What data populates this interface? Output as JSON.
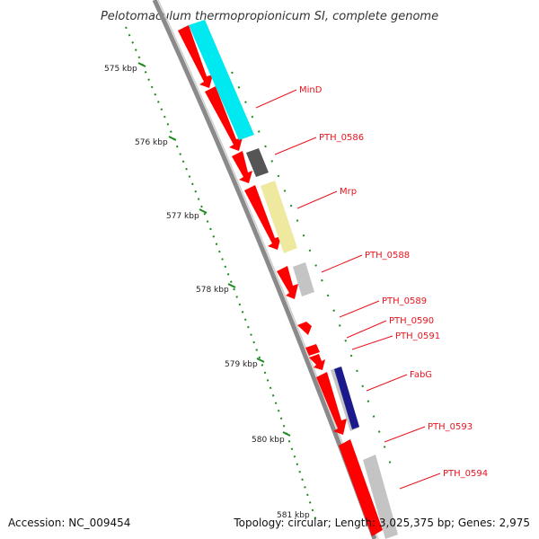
{
  "title": "Pelotomaculum thermopropionicum SI, complete genome",
  "footer": {
    "accession": "Accession: NC_009454",
    "topology": "Topology: circular; Length: 3,025,375 bp; Genes: 2,975"
  },
  "axis": {
    "ticks": [
      "575 kbp",
      "576 kbp",
      "577 kbp",
      "578 kbp",
      "579 kbp",
      "580 kbp",
      "581 kbp"
    ]
  },
  "genes": [
    {
      "name": "MinD"
    },
    {
      "name": "PTH_0586"
    },
    {
      "name": "Mrp"
    },
    {
      "name": "PTH_0588"
    },
    {
      "name": "PTH_0589"
    },
    {
      "name": "PTH_0590"
    },
    {
      "name": "PTH_0591"
    },
    {
      "name": "FabG"
    },
    {
      "name": "PTH_0593"
    },
    {
      "name": "PTH_0594"
    }
  ],
  "colors": {
    "backbone": "#808080",
    "gene_arrow": "#ff0000",
    "cog_cyan": "#00e5ee",
    "cog_dark": "#555555",
    "cog_yellow": "#eeeaa0",
    "cog_light": "#bdbdbd",
    "cog_navy": "#1a1a8c",
    "tick": "#1c8a1c",
    "label": "#e8141e"
  }
}
